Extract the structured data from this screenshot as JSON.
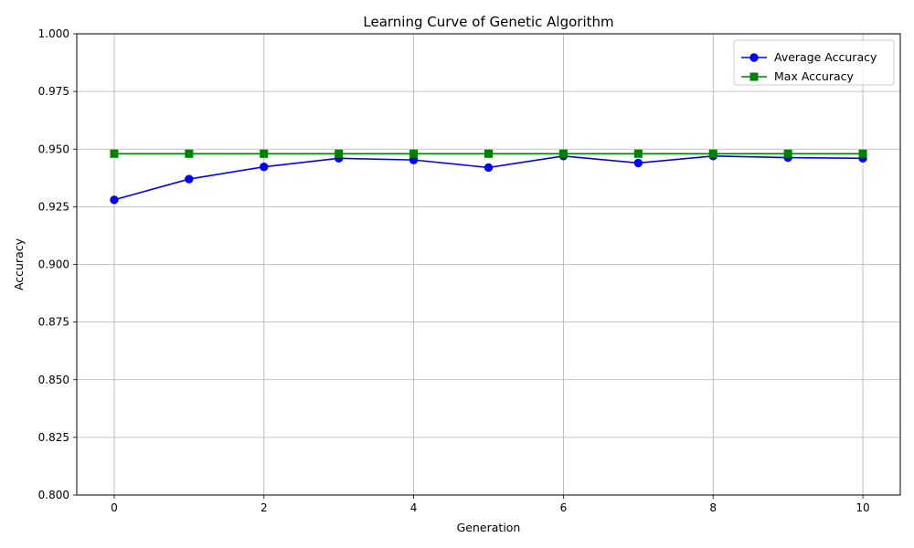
{
  "chart_data": {
    "type": "line",
    "title": "Learning Curve of Genetic Algorithm",
    "xlabel": "Generation",
    "ylabel": "Accuracy",
    "xlim": [
      -0.5,
      10.5
    ],
    "ylim": [
      0.8,
      1.0
    ],
    "xticks": [
      0,
      2,
      4,
      6,
      8,
      10
    ],
    "xtick_labels": [
      "0",
      "2",
      "4",
      "6",
      "8",
      "10"
    ],
    "yticks": [
      0.8,
      0.825,
      0.85,
      0.875,
      0.9,
      0.925,
      0.95,
      0.975,
      1.0
    ],
    "ytick_labels": [
      "0.800",
      "0.825",
      "0.850",
      "0.875",
      "0.900",
      "0.925",
      "0.950",
      "0.975",
      "1.000"
    ],
    "grid": true,
    "legend_position": "top-right",
    "x": [
      0,
      1,
      2,
      3,
      4,
      5,
      6,
      7,
      8,
      9,
      10
    ],
    "series": [
      {
        "name": "Average Accuracy",
        "color": "#0000ff",
        "marker": "circle",
        "values": [
          0.928,
          0.937,
          0.9423,
          0.946,
          0.9453,
          0.942,
          0.947,
          0.944,
          0.947,
          0.9463,
          0.946
        ]
      },
      {
        "name": "Max Accuracy",
        "color": "#008000",
        "marker": "square",
        "values": [
          0.948,
          0.948,
          0.948,
          0.948,
          0.948,
          0.948,
          0.948,
          0.948,
          0.948,
          0.948,
          0.948
        ]
      }
    ]
  }
}
